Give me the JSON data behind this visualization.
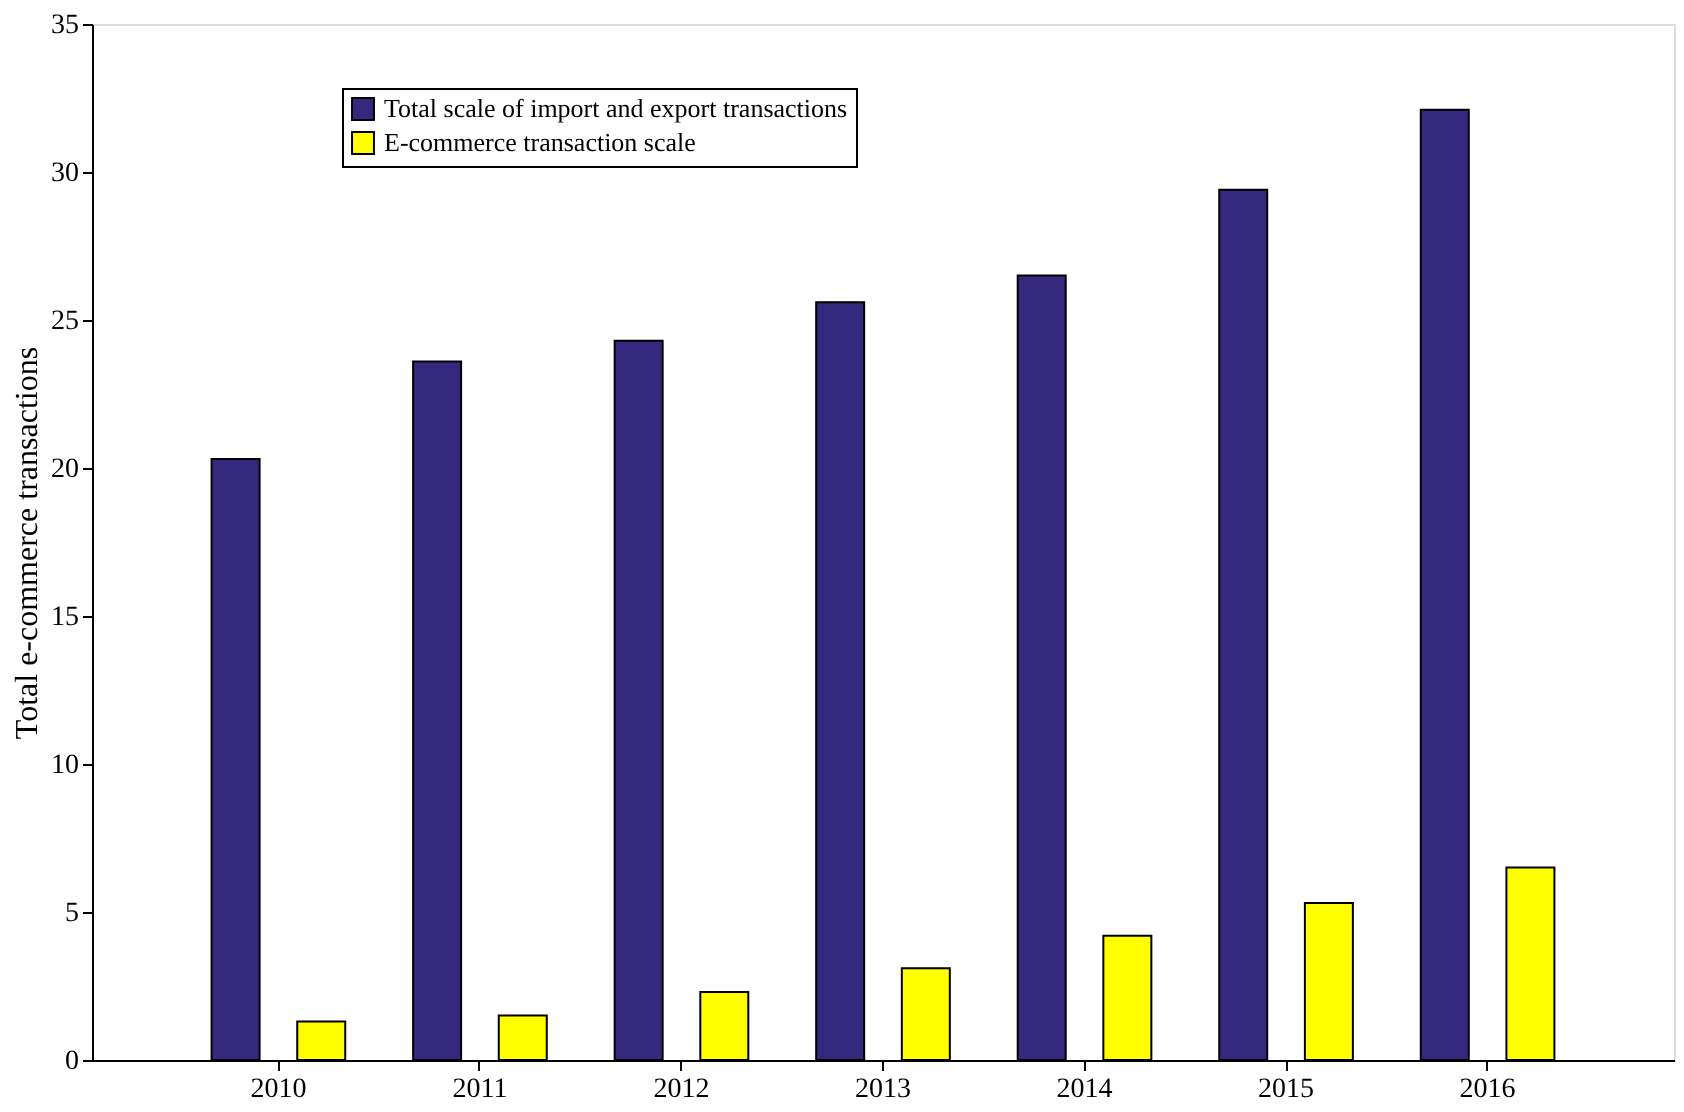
{
  "chart_data": {
    "type": "bar",
    "ylabel": "Total e-commerce transactions",
    "categories": [
      "2010",
      "2011",
      "2012",
      "2013",
      "2014",
      "2015",
      "2016"
    ],
    "series": [
      {
        "name": "Total scale of import and export transactions",
        "color": "#35297f",
        "values": [
          20.3,
          23.6,
          24.3,
          25.6,
          26.5,
          29.4,
          32.1
        ]
      },
      {
        "name": "E-commerce transaction scale",
        "color": "#ffff00",
        "values": [
          1.3,
          1.5,
          2.3,
          3.1,
          4.2,
          5.3,
          6.5
        ]
      }
    ],
    "ylim": [
      0,
      35
    ],
    "yticks": [
      0,
      5,
      10,
      15,
      20,
      25,
      30,
      35
    ],
    "grid": false,
    "legend": "top left"
  }
}
